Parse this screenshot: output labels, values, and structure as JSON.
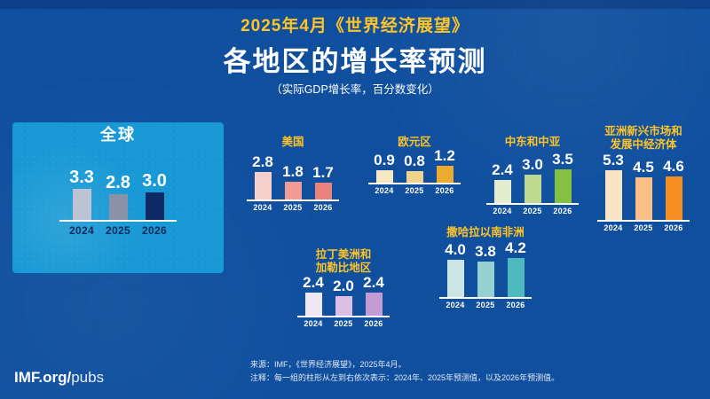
{
  "header": {
    "kicker": "2025年4月《世界经济展望》",
    "title": "各地区的增长率预测",
    "subtitle": "（实际GDP增长率，百分数变化）"
  },
  "colors": {
    "background": "#0F4F9E",
    "panel": "#1899D5",
    "accent_yellow": "#FFC425",
    "baseline_white": "#FFFFFF",
    "year_dark": "#0A2A5E"
  },
  "chart_data": [
    {
      "id": "global",
      "type": "bar",
      "title_lines": [
        "全球"
      ],
      "title_color": "#FFFFFF",
      "categories": [
        "2024",
        "2025",
        "2026"
      ],
      "values": [
        3.3,
        2.8,
        3.0
      ],
      "bar_colors": [
        "#BCC4D4",
        "#8992A9",
        "#0D2A66"
      ],
      "year_color": "#0A2A5E"
    },
    {
      "id": "usa",
      "type": "bar",
      "title_lines": [
        "美国"
      ],
      "title_color": "#FFC425",
      "categories": [
        "2024",
        "2025",
        "2026"
      ],
      "values": [
        2.8,
        1.8,
        1.7
      ],
      "bar_colors": [
        "#F7CFCC",
        "#F19B93",
        "#E8837E"
      ],
      "year_color": "#FFFFFF"
    },
    {
      "id": "euro-area",
      "type": "bar",
      "title_lines": [
        "欧元区"
      ],
      "title_color": "#FFC425",
      "categories": [
        "2024",
        "2025",
        "2026"
      ],
      "values": [
        0.9,
        0.8,
        1.2
      ],
      "bar_colors": [
        "#F6E8C4",
        "#F2D38B",
        "#ECAA2E"
      ],
      "year_color": "#FFFFFF"
    },
    {
      "id": "middle-east-central-asia",
      "type": "bar",
      "title_lines": [
        "中东和中亚"
      ],
      "title_color": "#FFC425",
      "categories": [
        "2024",
        "2025",
        "2026"
      ],
      "values": [
        2.4,
        3.0,
        3.5
      ],
      "bar_colors": [
        "#E4EECF",
        "#BFDA8F",
        "#85C141"
      ],
      "year_color": "#FFFFFF"
    },
    {
      "id": "emerging-developing-asia",
      "type": "bar",
      "title_lines": [
        "亚洲新兴市场和",
        "发展中经济体"
      ],
      "title_color": "#FFC425",
      "categories": [
        "2024",
        "2025",
        "2026"
      ],
      "values": [
        5.3,
        4.5,
        4.6
      ],
      "bar_colors": [
        "#FBE4C6",
        "#F9BF84",
        "#F68D20"
      ],
      "year_color": "#FFFFFF"
    },
    {
      "id": "latin-america-caribbean",
      "type": "bar",
      "title_lines": [
        "拉丁美洲和",
        "加勒比地区"
      ],
      "title_color": "#FFC425",
      "categories": [
        "2024",
        "2025",
        "2026"
      ],
      "values": [
        2.4,
        2.0,
        2.4
      ],
      "bar_colors": [
        "#EFE7F3",
        "#DAC0E4",
        "#C49CD4"
      ],
      "year_color": "#FFFFFF"
    },
    {
      "id": "sub-saharan-africa",
      "type": "bar",
      "title_lines": [
        "撒哈拉以南非洲"
      ],
      "title_color": "#FFC425",
      "categories": [
        "2024",
        "2025",
        "2026"
      ],
      "values": [
        4.0,
        3.8,
        4.2
      ],
      "bar_colors": [
        "#CBE6E5",
        "#96D1D2",
        "#4FBABD"
      ],
      "year_color": "#FFFFFF"
    }
  ],
  "footer": {
    "logo_bold": "IMF.org/",
    "logo_light": "pubs",
    "source": "来源：IMF，《世界经济展望》，2025年4月。",
    "note": "注释：每一组的柱形从左到右依次表示：2024年、2025年预测值，以及2026年预测值。"
  }
}
